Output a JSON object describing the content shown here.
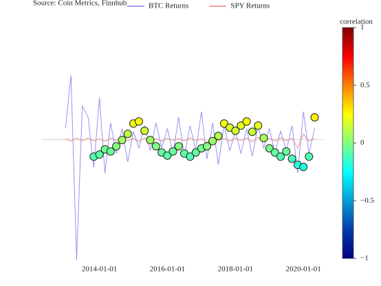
{
  "chart_data": {
    "type": "line",
    "subtitle": "Source: Coin Metrics, Finnhub",
    "x": [
      "2013-01-01",
      "2013-03-01",
      "2013-05-01",
      "2013-07-01",
      "2013-09-01",
      "2013-11-01",
      "2014-01-01",
      "2014-03-01",
      "2014-05-01",
      "2014-07-01",
      "2014-09-01",
      "2014-11-01",
      "2015-01-01",
      "2015-03-01",
      "2015-05-01",
      "2015-07-01",
      "2015-09-01",
      "2015-11-01",
      "2016-01-01",
      "2016-03-01",
      "2016-05-01",
      "2016-07-01",
      "2016-09-01",
      "2016-11-01",
      "2017-01-01",
      "2017-03-01",
      "2017-05-01",
      "2017-07-01",
      "2017-09-01",
      "2017-11-01",
      "2018-01-01",
      "2018-03-01",
      "2018-05-01",
      "2018-07-01",
      "2018-09-01",
      "2018-11-01",
      "2019-01-01",
      "2019-03-01",
      "2019-05-01",
      "2019-07-01",
      "2019-09-01",
      "2019-11-01",
      "2020-01-01",
      "2020-03-01",
      "2020-05-01"
    ],
    "series": [
      {
        "name": "BTC Returns",
        "color": "#8080ee",
        "values": [
          0.04,
          0.23,
          -0.43,
          0.12,
          0.08,
          -0.1,
          0.15,
          -0.12,
          0.06,
          -0.05,
          0.04,
          -0.08,
          0.03,
          -0.03,
          0.05,
          -0.04,
          0.06,
          -0.03,
          0.04,
          -0.05,
          0.08,
          -0.06,
          0.05,
          -0.04,
          0.1,
          -0.07,
          0.06,
          -0.09,
          0.05,
          -0.04,
          0.03,
          -0.05,
          0.04,
          -0.06,
          0.05,
          -0.03,
          0.04,
          -0.05,
          0.03,
          -0.04,
          0.05,
          -0.12,
          0.1,
          -0.05,
          0.04
        ]
      },
      {
        "name": "SPY Returns",
        "color": "#ee8080",
        "values": [
          0.004,
          -0.006,
          0.005,
          -0.004,
          0.006,
          -0.005,
          0.003,
          -0.007,
          0.005,
          -0.004,
          0.006,
          -0.003,
          0.004,
          -0.008,
          0.006,
          -0.005,
          0.004,
          -0.006,
          0.005,
          -0.003,
          0.004,
          -0.005,
          0.006,
          -0.004,
          0.003,
          -0.01,
          0.007,
          -0.005,
          0.004,
          -0.006,
          0.005,
          -0.004,
          0.006,
          -0.009,
          0.008,
          -0.005,
          0.004,
          -0.005,
          0.006,
          -0.004,
          0.005,
          -0.03,
          0.02,
          -0.006,
          0.005
        ]
      },
      {
        "mode": "markers",
        "axis": "y2",
        "x": [
          "2013-11-01",
          "2014-01-01",
          "2014-03-01",
          "2014-05-01",
          "2014-07-01",
          "2014-09-01",
          "2014-11-01",
          "2015-01-01",
          "2015-03-01",
          "2015-05-01",
          "2015-07-01",
          "2015-09-01",
          "2015-11-01",
          "2016-01-01",
          "2016-03-01",
          "2016-05-01",
          "2016-07-01",
          "2016-09-01",
          "2016-11-01",
          "2017-01-01",
          "2017-03-01",
          "2017-05-01",
          "2017-07-01",
          "2017-09-01",
          "2017-11-01",
          "2018-01-01",
          "2018-03-01",
          "2018-05-01",
          "2018-07-01",
          "2018-09-01",
          "2018-11-01",
          "2019-01-01",
          "2019-03-01",
          "2019-05-01",
          "2019-07-01",
          "2019-09-01",
          "2019-11-01",
          "2020-01-01",
          "2020-03-01",
          "2020-05-01"
        ],
        "values": [
          -0.1,
          -0.08,
          -0.03,
          -0.05,
          0.0,
          0.06,
          0.12,
          0.22,
          0.24,
          0.15,
          0.06,
          0.0,
          -0.06,
          -0.09,
          -0.05,
          0.0,
          -0.07,
          -0.1,
          -0.06,
          -0.02,
          0.0,
          0.05,
          0.1,
          0.22,
          0.18,
          0.15,
          0.2,
          0.24,
          0.14,
          0.2,
          0.08,
          -0.02,
          -0.06,
          -0.1,
          -0.05,
          -0.12,
          -0.18,
          -0.2,
          -0.1,
          0.28
        ]
      }
    ],
    "xlim": [
      "2012-05-01",
      "2020-08-01"
    ],
    "xticks": [
      "2014-01-01",
      "2016-01-01",
      "2018-01-01",
      "2020-01-01"
    ],
    "ylim": [
      -0.45,
      0.45
    ],
    "y2lim": [
      -1.15,
      1.28
    ],
    "colorbar": {
      "title": "correlation",
      "lim": [
        -1,
        1
      ],
      "ticks": [
        {
          "value": 1,
          "label": "1"
        },
        {
          "value": 0.5,
          "label": "0.5"
        },
        {
          "value": 0,
          "label": "0"
        },
        {
          "value": -0.5,
          "label": "−0.5"
        },
        {
          "value": -1,
          "label": "−1"
        }
      ]
    }
  }
}
